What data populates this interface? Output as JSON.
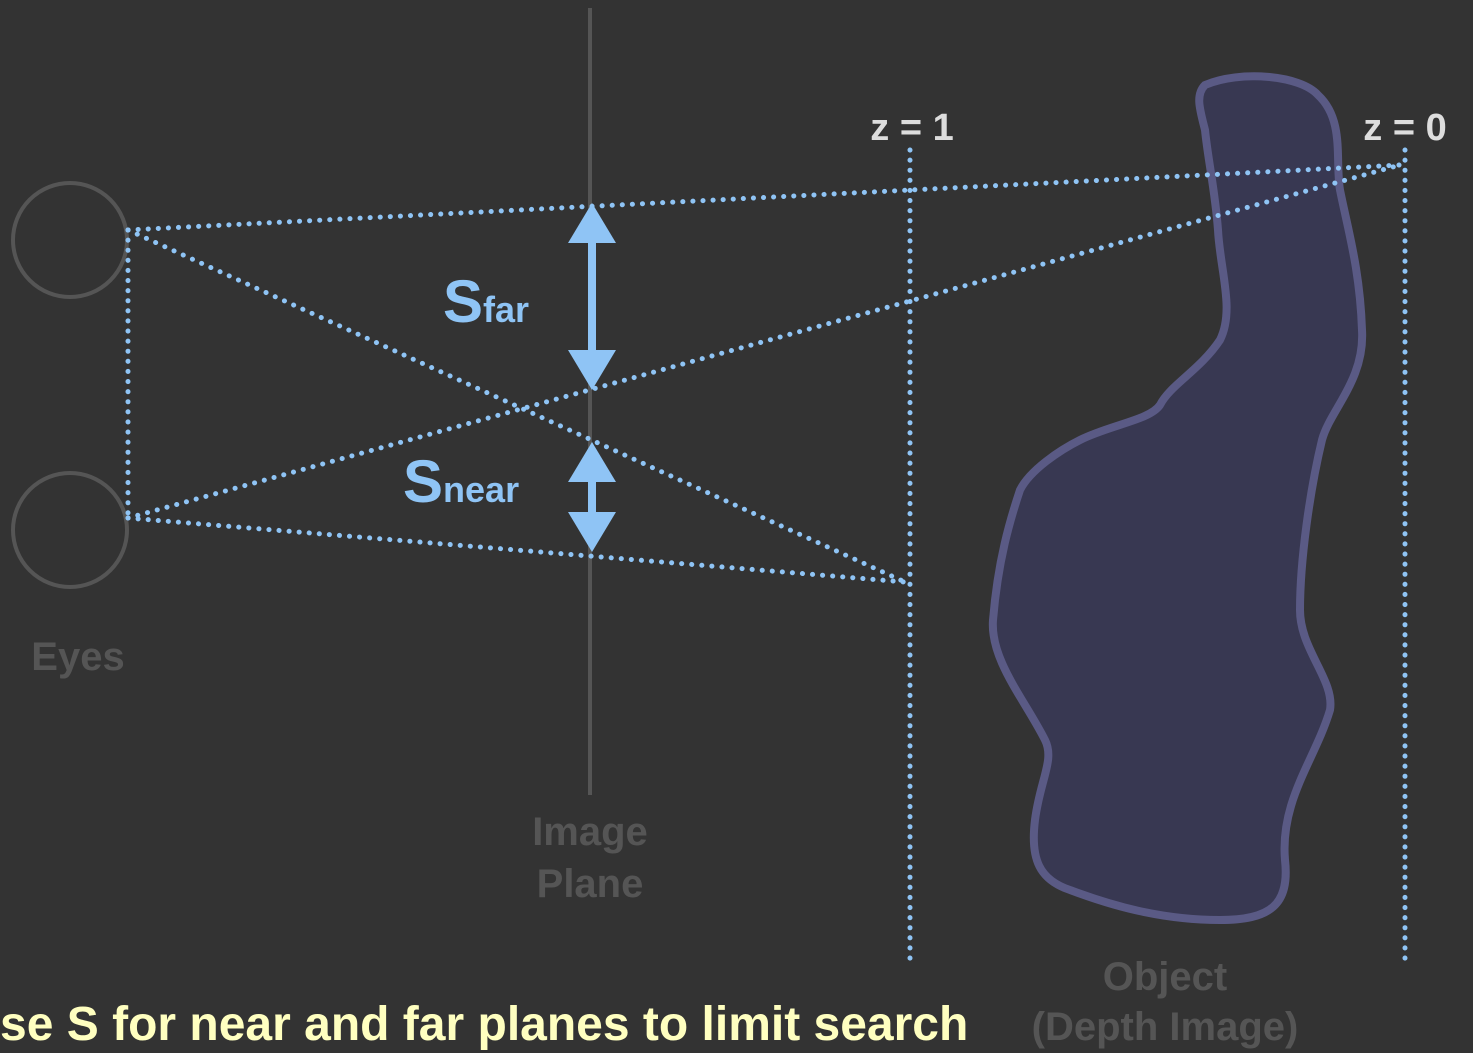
{
  "labels": {
    "z1": "z = 1",
    "z0": "z = 0",
    "s": "S",
    "far": "far",
    "near": "near",
    "eyes": "Eyes",
    "image": "Image",
    "plane": "Plane",
    "object": "Object",
    "depth": "(Depth Image)"
  },
  "caption": "se S for near and far planes to limit search"
}
